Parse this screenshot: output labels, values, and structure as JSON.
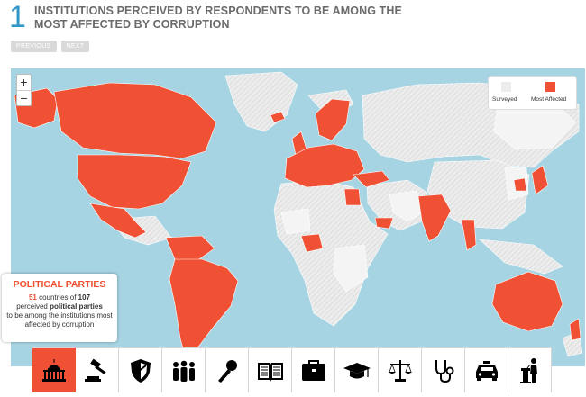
{
  "header": {
    "step_number": "1",
    "title": "INSTITUTIONS PERCEIVED BY RESPONDENTS TO BE AMONG THE MOST AFFECTED BY CORRUPTION"
  },
  "nav": {
    "previous_label": "PREVIOUS",
    "next_label": "NEXT"
  },
  "zoom": {
    "in_label": "+",
    "out_label": "−"
  },
  "legend": {
    "surveyed_label": "Surveyed",
    "most_affected_label": "Most Affected",
    "surveyed_color": "#ececec",
    "most_affected_color": "#f05033"
  },
  "map_colors": {
    "ocean": "#a6d4e2",
    "not_surveyed": "#e9e9e9",
    "surveyed": "#f4f4f4",
    "most_affected": "#f05033"
  },
  "info": {
    "title": "POLITICAL PARTIES",
    "count": "51",
    "text_a": " countries of ",
    "total": "107",
    "text_b": "perceived ",
    "institution": "political parties",
    "text_c": "to be among the institutions most affected by corruption"
  },
  "categories": [
    {
      "name": "political-parties",
      "icon": "capitol-icon",
      "active": true
    },
    {
      "name": "judiciary",
      "icon": "gavel-icon",
      "active": false
    },
    {
      "name": "military",
      "icon": "shield-icon",
      "active": false
    },
    {
      "name": "ngos",
      "icon": "people-icon",
      "active": false
    },
    {
      "name": "media",
      "icon": "microphone-icon",
      "active": false
    },
    {
      "name": "religious-bodies",
      "icon": "book-icon",
      "active": false
    },
    {
      "name": "business",
      "icon": "briefcase-icon",
      "active": false
    },
    {
      "name": "education",
      "icon": "graduation-cap-icon",
      "active": false
    },
    {
      "name": "public-officials",
      "icon": "scales-icon",
      "active": false
    },
    {
      "name": "medical-health",
      "icon": "stethoscope-icon",
      "active": false
    },
    {
      "name": "police",
      "icon": "police-car-icon",
      "active": false
    },
    {
      "name": "parliament",
      "icon": "podium-speaker-icon",
      "active": false
    }
  ]
}
